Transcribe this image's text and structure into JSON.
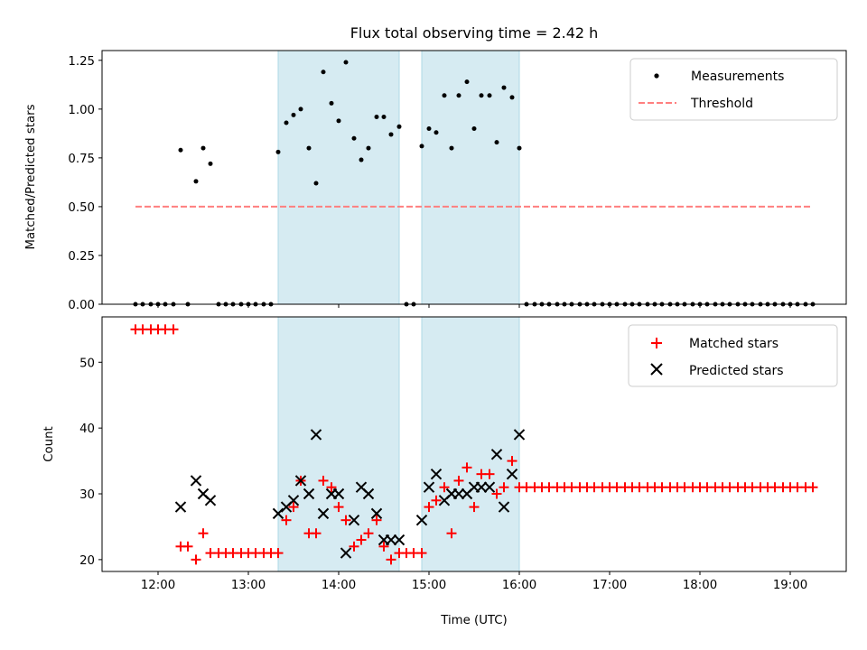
{
  "chart_data": [
    {
      "type": "scatter",
      "title": "Flux total observing time = 2.42 h",
      "xlabel": "",
      "ylabel": "Matched/Predicted stars",
      "ylim": [
        0,
        1.3
      ],
      "xlim_hours": [
        11.38,
        19.62
      ],
      "yticks": [
        0.0,
        0.25,
        0.5,
        0.75,
        1.0,
        1.25
      ],
      "ytick_labels": [
        "0.00",
        "0.25",
        "0.50",
        "0.75",
        "1.00",
        "1.25"
      ],
      "shaded_intervals_hours": [
        [
          13.33,
          14.67
        ],
        [
          14.92,
          16.0
        ]
      ],
      "shade_color": "#add8e6",
      "legend_position": "top-right",
      "series": [
        {
          "name": "Measurements",
          "marker": "dot",
          "color": "#000000",
          "points": [
            [
              11.75,
              0
            ],
            [
              11.83,
              0
            ],
            [
              11.92,
              0
            ],
            [
              12.0,
              0
            ],
            [
              12.08,
              0
            ],
            [
              12.17,
              0
            ],
            [
              12.25,
              0.79
            ],
            [
              12.33,
              0
            ],
            [
              12.42,
              0.63
            ],
            [
              12.5,
              0.8
            ],
            [
              12.58,
              0.72
            ],
            [
              12.67,
              0
            ],
            [
              12.75,
              0
            ],
            [
              12.83,
              0
            ],
            [
              12.92,
              0
            ],
            [
              13.0,
              0
            ],
            [
              13.08,
              0
            ],
            [
              13.17,
              0
            ],
            [
              13.25,
              0
            ],
            [
              13.33,
              0.78
            ],
            [
              13.42,
              0.93
            ],
            [
              13.5,
              0.97
            ],
            [
              13.58,
              1.0
            ],
            [
              13.67,
              0.8
            ],
            [
              13.75,
              0.62
            ],
            [
              13.83,
              1.19
            ],
            [
              13.92,
              1.03
            ],
            [
              14.0,
              0.94
            ],
            [
              14.08,
              1.24
            ],
            [
              14.17,
              0.85
            ],
            [
              14.25,
              0.74
            ],
            [
              14.33,
              0.8
            ],
            [
              14.42,
              0.96
            ],
            [
              14.5,
              0.96
            ],
            [
              14.58,
              0.87
            ],
            [
              14.67,
              0.91
            ],
            [
              14.75,
              0
            ],
            [
              14.83,
              0
            ],
            [
              14.92,
              0.81
            ],
            [
              15.0,
              0.9
            ],
            [
              15.08,
              0.88
            ],
            [
              15.17,
              1.07
            ],
            [
              15.25,
              0.8
            ],
            [
              15.33,
              1.07
            ],
            [
              15.42,
              1.14
            ],
            [
              15.5,
              0.9
            ],
            [
              15.58,
              1.07
            ],
            [
              15.67,
              1.07
            ],
            [
              15.75,
              0.83
            ],
            [
              15.83,
              1.11
            ],
            [
              15.92,
              1.06
            ],
            [
              16.0,
              0.8
            ],
            [
              16.08,
              0
            ],
            [
              16.17,
              0
            ],
            [
              16.25,
              0
            ],
            [
              16.33,
              0
            ],
            [
              16.42,
              0
            ],
            [
              16.5,
              0
            ],
            [
              16.58,
              0
            ],
            [
              16.67,
              0
            ],
            [
              16.75,
              0
            ],
            [
              16.83,
              0
            ],
            [
              16.92,
              0
            ],
            [
              17.0,
              0
            ],
            [
              17.08,
              0
            ],
            [
              17.17,
              0
            ],
            [
              17.25,
              0
            ],
            [
              17.33,
              0
            ],
            [
              17.42,
              0
            ],
            [
              17.5,
              0
            ],
            [
              17.58,
              0
            ],
            [
              17.67,
              0
            ],
            [
              17.75,
              0
            ],
            [
              17.83,
              0
            ],
            [
              17.92,
              0
            ],
            [
              18.0,
              0
            ],
            [
              18.08,
              0
            ],
            [
              18.17,
              0
            ],
            [
              18.25,
              0
            ],
            [
              18.33,
              0
            ],
            [
              18.42,
              0
            ],
            [
              18.5,
              0
            ],
            [
              18.58,
              0
            ],
            [
              18.67,
              0
            ],
            [
              18.75,
              0
            ],
            [
              18.83,
              0
            ],
            [
              18.92,
              0
            ],
            [
              19.0,
              0
            ],
            [
              19.08,
              0
            ],
            [
              19.17,
              0
            ],
            [
              19.25,
              0
            ]
          ]
        },
        {
          "name": "Threshold",
          "type": "line",
          "style": "dashed",
          "color": "#ff7f7f",
          "points": [
            [
              11.75,
              0.5
            ],
            [
              19.25,
              0.5
            ]
          ]
        }
      ]
    },
    {
      "type": "scatter",
      "title": "",
      "xlabel": "Time (UTC)",
      "ylabel": "Count",
      "ylim": [
        18.2,
        56.9
      ],
      "xlim_hours": [
        11.38,
        19.62
      ],
      "yticks": [
        20,
        30,
        40,
        50
      ],
      "ytick_labels": [
        "20",
        "30",
        "40",
        "50"
      ],
      "xticks_hours": [
        12,
        13,
        14,
        15,
        16,
        17,
        18,
        19
      ],
      "xtick_labels": [
        "12:00",
        "13:00",
        "14:00",
        "15:00",
        "16:00",
        "17:00",
        "18:00",
        "19:00"
      ],
      "shaded_intervals_hours": [
        [
          13.33,
          14.67
        ],
        [
          14.92,
          16.0
        ]
      ],
      "shade_color": "#add8e6",
      "legend_position": "top-right",
      "series": [
        {
          "name": "Matched stars",
          "marker": "plus",
          "color": "#ff0000",
          "points": [
            [
              11.75,
              55
            ],
            [
              11.83,
              55
            ],
            [
              11.92,
              55
            ],
            [
              12.0,
              55
            ],
            [
              12.08,
              55
            ],
            [
              12.17,
              55
            ],
            [
              12.25,
              22
            ],
            [
              12.33,
              22
            ],
            [
              12.42,
              20
            ],
            [
              12.5,
              24
            ],
            [
              12.58,
              21
            ],
            [
              12.67,
              21
            ],
            [
              12.75,
              21
            ],
            [
              12.83,
              21
            ],
            [
              12.92,
              21
            ],
            [
              13.0,
              21
            ],
            [
              13.08,
              21
            ],
            [
              13.17,
              21
            ],
            [
              13.25,
              21
            ],
            [
              13.33,
              21
            ],
            [
              13.42,
              26
            ],
            [
              13.5,
              28
            ],
            [
              13.58,
              32
            ],
            [
              13.67,
              24
            ],
            [
              13.75,
              24
            ],
            [
              13.83,
              32
            ],
            [
              13.92,
              31
            ],
            [
              14.0,
              28
            ],
            [
              14.08,
              26
            ],
            [
              14.17,
              22
            ],
            [
              14.25,
              23
            ],
            [
              14.33,
              24
            ],
            [
              14.42,
              26
            ],
            [
              14.5,
              22
            ],
            [
              14.58,
              20
            ],
            [
              14.67,
              21
            ],
            [
              14.75,
              21
            ],
            [
              14.83,
              21
            ],
            [
              14.92,
              21
            ],
            [
              15.0,
              28
            ],
            [
              15.08,
              29
            ],
            [
              15.17,
              31
            ],
            [
              15.25,
              24
            ],
            [
              15.33,
              32
            ],
            [
              15.42,
              34
            ],
            [
              15.5,
              28
            ],
            [
              15.58,
              33
            ],
            [
              15.67,
              33
            ],
            [
              15.75,
              30
            ],
            [
              15.83,
              31
            ],
            [
              15.92,
              35
            ],
            [
              16.0,
              31
            ],
            [
              16.08,
              31
            ],
            [
              16.17,
              31
            ],
            [
              16.25,
              31
            ],
            [
              16.33,
              31
            ],
            [
              16.42,
              31
            ],
            [
              16.5,
              31
            ],
            [
              16.58,
              31
            ],
            [
              16.67,
              31
            ],
            [
              16.75,
              31
            ],
            [
              16.83,
              31
            ],
            [
              16.92,
              31
            ],
            [
              17.0,
              31
            ],
            [
              17.08,
              31
            ],
            [
              17.17,
              31
            ],
            [
              17.25,
              31
            ],
            [
              17.33,
              31
            ],
            [
              17.42,
              31
            ],
            [
              17.5,
              31
            ],
            [
              17.58,
              31
            ],
            [
              17.67,
              31
            ],
            [
              17.75,
              31
            ],
            [
              17.83,
              31
            ],
            [
              17.92,
              31
            ],
            [
              18.0,
              31
            ],
            [
              18.08,
              31
            ],
            [
              18.17,
              31
            ],
            [
              18.25,
              31
            ],
            [
              18.33,
              31
            ],
            [
              18.42,
              31
            ],
            [
              18.5,
              31
            ],
            [
              18.58,
              31
            ],
            [
              18.67,
              31
            ],
            [
              18.75,
              31
            ],
            [
              18.83,
              31
            ],
            [
              18.92,
              31
            ],
            [
              19.0,
              31
            ],
            [
              19.08,
              31
            ],
            [
              19.17,
              31
            ],
            [
              19.25,
              31
            ]
          ]
        },
        {
          "name": "Predicted stars",
          "marker": "x",
          "color": "#000000",
          "points": [
            [
              12.25,
              28
            ],
            [
              12.42,
              32
            ],
            [
              12.5,
              30
            ],
            [
              12.58,
              29
            ],
            [
              13.33,
              27
            ],
            [
              13.42,
              28
            ],
            [
              13.5,
              29
            ],
            [
              13.58,
              32
            ],
            [
              13.67,
              30
            ],
            [
              13.75,
              39
            ],
            [
              13.83,
              27
            ],
            [
              13.92,
              30
            ],
            [
              14.0,
              30
            ],
            [
              14.08,
              21
            ],
            [
              14.17,
              26
            ],
            [
              14.25,
              31
            ],
            [
              14.33,
              30
            ],
            [
              14.42,
              27
            ],
            [
              14.5,
              23
            ],
            [
              14.58,
              23
            ],
            [
              14.67,
              23
            ],
            [
              14.92,
              26
            ],
            [
              15.0,
              31
            ],
            [
              15.08,
              33
            ],
            [
              15.17,
              29
            ],
            [
              15.25,
              30
            ],
            [
              15.33,
              30
            ],
            [
              15.42,
              30
            ],
            [
              15.5,
              31
            ],
            [
              15.58,
              31
            ],
            [
              15.67,
              31
            ],
            [
              15.75,
              36
            ],
            [
              15.83,
              28
            ],
            [
              15.92,
              33
            ],
            [
              16.0,
              39
            ]
          ]
        }
      ]
    }
  ]
}
